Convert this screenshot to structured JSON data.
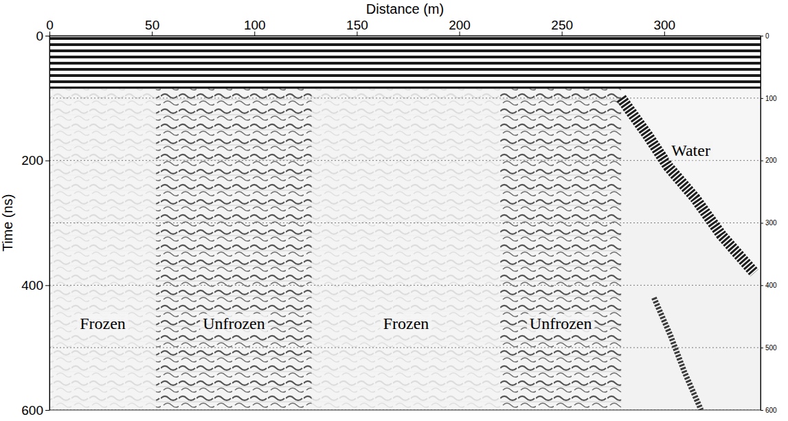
{
  "chart_data": {
    "type": "radargram",
    "x_label": "Distance (m)",
    "y_label": "Time (ns)",
    "xlim": [
      0,
      347
    ],
    "ylim": [
      0,
      600
    ],
    "xticks": [
      0,
      50,
      100,
      150,
      200,
      250,
      300
    ],
    "yticks": [
      0,
      200,
      400,
      600
    ],
    "y2lim": [
      0,
      600
    ],
    "y2ticks": [
      0,
      100,
      200,
      300,
      400,
      500,
      600
    ],
    "grid": true,
    "direct_wave": 85,
    "zones": [
      {
        "label": "Frozen",
        "start": 0,
        "end": 52,
        "color": "#d8d8d8"
      },
      {
        "label": "Unfrozen",
        "start": 52,
        "end": 128,
        "color": "#3a3a3a"
      },
      {
        "label": "Frozen",
        "start": 128,
        "end": 220,
        "color": "#d8d8d8"
      },
      {
        "label": "Unfrozen",
        "start": 220,
        "end": 279,
        "color": "#3a3a3a"
      },
      {
        "label": "Water",
        "start": 279,
        "end": 347,
        "color": "#f6f6f6",
        "boundary": 0
      }
    ],
    "reflections": [
      {
        "x": [
          279,
          292,
          302,
          315,
          328,
          344
        ],
        "values": [
          100,
          160,
          210,
          260,
          320,
          380
        ],
        "color": "#1e1e1e"
      },
      {
        "x": [
          295,
          303,
          310,
          318
        ],
        "values": [
          420,
          480,
          540,
          600
        ],
        "color": "#3c3c3c"
      }
    ]
  }
}
